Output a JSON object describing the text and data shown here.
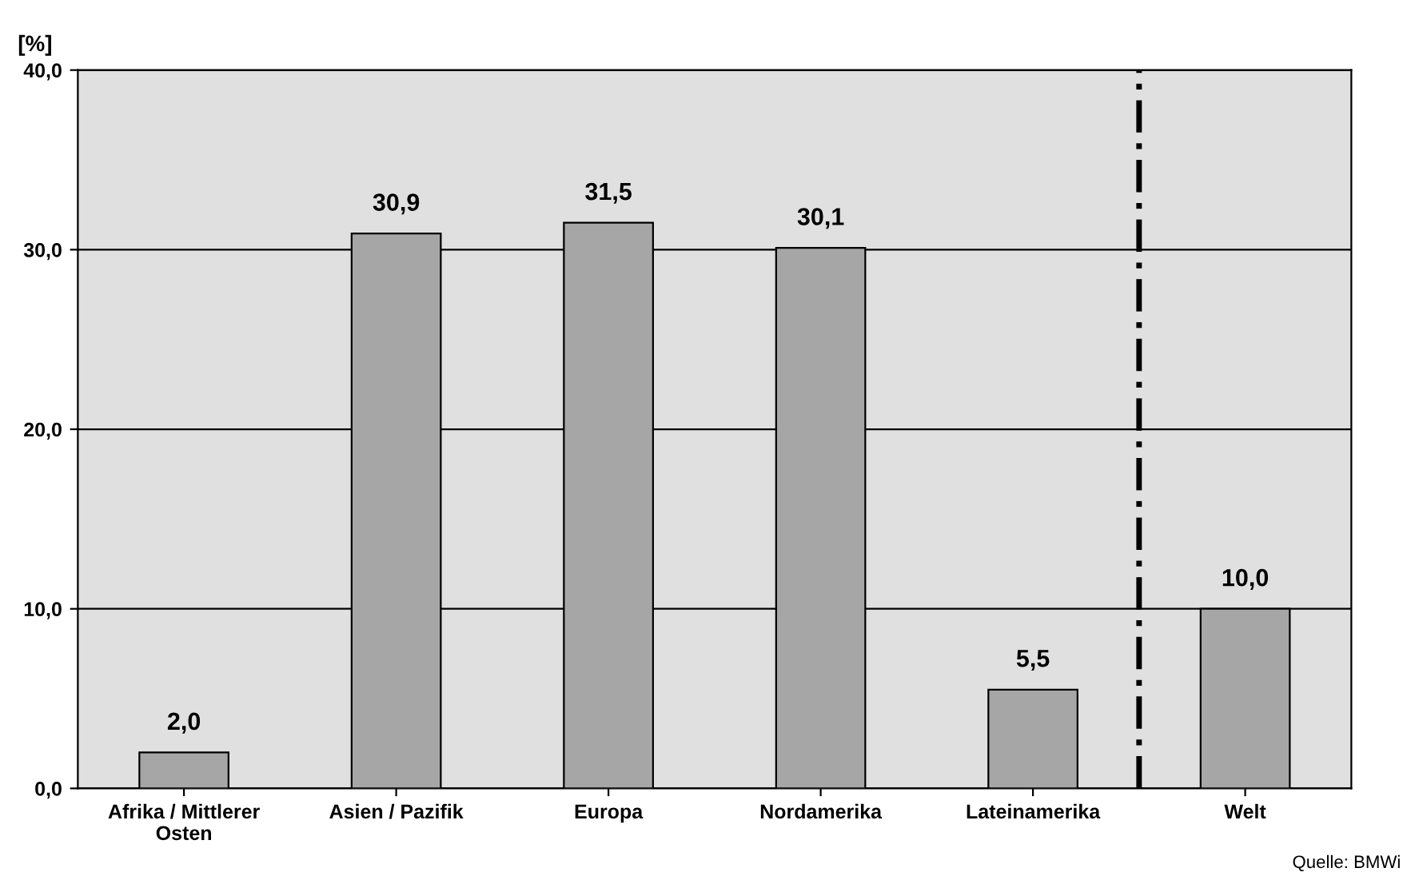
{
  "chart_data": {
    "type": "bar",
    "ylabel": "[%]",
    "categories": [
      "Afrika / Mittlerer\nOsten",
      "Asien / Pazifik",
      "Europa",
      "Nordamerika",
      "Lateinamerika",
      "Welt"
    ],
    "values": [
      2.0,
      30.9,
      31.5,
      30.1,
      5.5,
      10.0
    ],
    "value_labels": [
      "2,0",
      "30,9",
      "31,5",
      "30,1",
      "5,5",
      "10,0"
    ],
    "color": "#a6a6a6",
    "ylim": [
      0,
      40
    ],
    "yticks": [
      {
        "value": 0,
        "label": "0,0"
      },
      {
        "value": 10,
        "label": "10,0"
      },
      {
        "value": 20,
        "label": "20,0"
      },
      {
        "value": 30,
        "label": "30,0"
      },
      {
        "value": 40,
        "label": "40,0"
      }
    ],
    "grid": "y",
    "annotations": [
      "Quelle: BMWi"
    ]
  }
}
